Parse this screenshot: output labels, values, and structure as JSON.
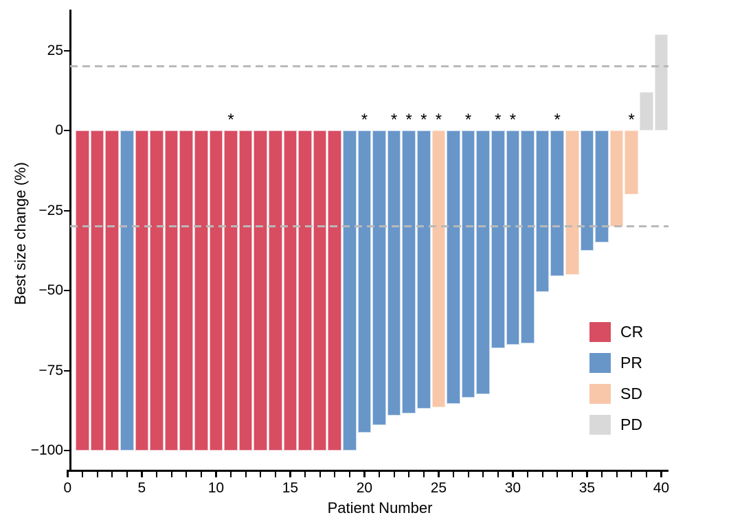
{
  "chart_data": {
    "type": "bar",
    "subtype": "waterfall",
    "title": "",
    "xlabel": "Patient Number",
    "ylabel": "Best size change (%)",
    "x_tick_label_values": [
      0,
      5,
      10,
      15,
      20,
      25,
      30,
      35,
      40
    ],
    "x_minor_ticks_every": 1,
    "x_axis_range": [
      0,
      40
    ],
    "y_tick_values": [
      25,
      0,
      -25,
      -50,
      -75,
      -100
    ],
    "y_tick_labels": [
      "25",
      "0",
      "−25",
      "−50",
      "−75",
      "−100"
    ],
    "ylim": [
      -107,
      37
    ],
    "grid": false,
    "reference_lines": [
      {
        "value": 20,
        "style": "dashed",
        "color": "#b9b9b9"
      },
      {
        "value": -30,
        "style": "dashed",
        "color": "#b9b9b9"
      }
    ],
    "annotation_symbol": "*",
    "colors": {
      "CR": {
        "fill": "#d84d61",
        "border": "#efb6c0"
      },
      "PR": {
        "fill": "#6996c9",
        "border": "#c8daec"
      },
      "SD": {
        "fill": "#f8c6a9",
        "border": "#fbe3d3"
      },
      "PD": {
        "fill": "#d9d9d9",
        "border": "#ededed"
      }
    },
    "legend": [
      {
        "label": "CR",
        "color": "#d84d61"
      },
      {
        "label": "PR",
        "color": "#6996c9"
      },
      {
        "label": "SD",
        "color": "#f8c6a9"
      },
      {
        "label": "PD",
        "color": "#d9d9d9"
      }
    ],
    "legend_position": "right-lower",
    "patients": [
      {
        "id": 1,
        "response": "CR",
        "value": -100,
        "star": false
      },
      {
        "id": 2,
        "response": "CR",
        "value": -100,
        "star": false
      },
      {
        "id": 3,
        "response": "CR",
        "value": -100,
        "star": false
      },
      {
        "id": 4,
        "response": "PR",
        "value": -100,
        "star": false
      },
      {
        "id": 5,
        "response": "CR",
        "value": -100,
        "star": false
      },
      {
        "id": 6,
        "response": "CR",
        "value": -100,
        "star": false
      },
      {
        "id": 7,
        "response": "CR",
        "value": -100,
        "star": false
      },
      {
        "id": 8,
        "response": "CR",
        "value": -100,
        "star": false
      },
      {
        "id": 9,
        "response": "CR",
        "value": -100,
        "star": false
      },
      {
        "id": 10,
        "response": "CR",
        "value": -100,
        "star": false
      },
      {
        "id": 11,
        "response": "CR",
        "value": -100,
        "star": true
      },
      {
        "id": 12,
        "response": "CR",
        "value": -100,
        "star": false
      },
      {
        "id": 13,
        "response": "CR",
        "value": -100,
        "star": false
      },
      {
        "id": 14,
        "response": "CR",
        "value": -100,
        "star": false
      },
      {
        "id": 15,
        "response": "CR",
        "value": -100,
        "star": false
      },
      {
        "id": 16,
        "response": "CR",
        "value": -100,
        "star": false
      },
      {
        "id": 17,
        "response": "CR",
        "value": -100,
        "star": false
      },
      {
        "id": 18,
        "response": "CR",
        "value": -100,
        "star": false
      },
      {
        "id": 19,
        "response": "PR",
        "value": -100,
        "star": false
      },
      {
        "id": 20,
        "response": "PR",
        "value": -94.5,
        "star": true
      },
      {
        "id": 21,
        "response": "PR",
        "value": -92,
        "star": false
      },
      {
        "id": 22,
        "response": "PR",
        "value": -89,
        "star": true
      },
      {
        "id": 23,
        "response": "PR",
        "value": -88.5,
        "star": true
      },
      {
        "id": 24,
        "response": "PR",
        "value": -87,
        "star": true
      },
      {
        "id": 25,
        "response": "SD",
        "value": -86.5,
        "star": true
      },
      {
        "id": 26,
        "response": "PR",
        "value": -85.5,
        "star": false
      },
      {
        "id": 27,
        "response": "PR",
        "value": -83.5,
        "star": true
      },
      {
        "id": 28,
        "response": "PR",
        "value": -82.5,
        "star": false
      },
      {
        "id": 29,
        "response": "PR",
        "value": -68,
        "star": true
      },
      {
        "id": 30,
        "response": "PR",
        "value": -67,
        "star": true
      },
      {
        "id": 31,
        "response": "PR",
        "value": -66.5,
        "star": false
      },
      {
        "id": 32,
        "response": "PR",
        "value": -50.5,
        "star": false
      },
      {
        "id": 33,
        "response": "PR",
        "value": -45.5,
        "star": true
      },
      {
        "id": 34,
        "response": "SD",
        "value": -45,
        "star": false
      },
      {
        "id": 35,
        "response": "PR",
        "value": -37.5,
        "star": false
      },
      {
        "id": 36,
        "response": "PR",
        "value": -35,
        "star": false
      },
      {
        "id": 37,
        "response": "SD",
        "value": -30,
        "star": false
      },
      {
        "id": 38,
        "response": "SD",
        "value": -20,
        "star": true
      },
      {
        "id": 39,
        "response": "PD",
        "value": 12,
        "star": false
      },
      {
        "id": 40,
        "response": "PD",
        "value": 30,
        "star": false
      }
    ]
  }
}
